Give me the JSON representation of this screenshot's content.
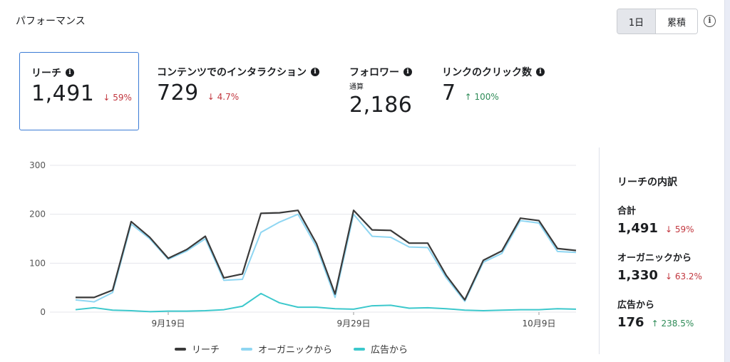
{
  "header": {
    "title": "パフォーマンス",
    "toggle": [
      "1日",
      "累積"
    ],
    "info": "i"
  },
  "metrics": [
    {
      "label": "リーチ",
      "sub": "",
      "value": "1,491",
      "delta": "59%",
      "direction": "down"
    },
    {
      "label": "コンテンツでのインタラクション",
      "sub": "",
      "value": "729",
      "delta": "4.7%",
      "direction": "down"
    },
    {
      "label": "フォロワー",
      "sub": "通算",
      "value": "2,186",
      "delta": "",
      "direction": ""
    },
    {
      "label": "リンクのクリック数",
      "sub": "",
      "value": "7",
      "delta": "100%",
      "direction": "up"
    }
  ],
  "arrows": {
    "down": "↓",
    "up": "↑"
  },
  "breakdown": {
    "title": "リーチの内訳",
    "items": [
      {
        "label": "合計",
        "value": "1,491",
        "delta": "59%",
        "direction": "down"
      },
      {
        "label": "オーガニックから",
        "value": "1,330",
        "delta": "63.2%",
        "direction": "down"
      },
      {
        "label": "広告から",
        "value": "176",
        "delta": "238.5%",
        "direction": "up"
      }
    ]
  },
  "chart_data": {
    "type": "line",
    "x": [
      1,
      2,
      3,
      4,
      5,
      6,
      7,
      8,
      9,
      10,
      11,
      12,
      13,
      14,
      15,
      16,
      17,
      18,
      19,
      20,
      21,
      22,
      23,
      24,
      25,
      26,
      27,
      28
    ],
    "xticks": [
      {
        "x": 6,
        "label": "9月19日"
      },
      {
        "x": 16,
        "label": "9月29日"
      },
      {
        "x": 26,
        "label": "10月9日"
      }
    ],
    "yticks": [
      0,
      100,
      200,
      300
    ],
    "ylim": [
      0,
      300
    ],
    "grid": true,
    "legend_position": "bottom",
    "series": [
      {
        "name": "リーチ",
        "color": "#3a3a3a",
        "values": [
          30,
          30,
          45,
          185,
          153,
          110,
          128,
          155,
          70,
          78,
          202,
          203,
          208,
          140,
          37,
          208,
          168,
          167,
          141,
          141,
          75,
          25,
          106,
          125,
          192,
          187,
          130,
          126
        ]
      },
      {
        "name": "オーガニックから",
        "color": "#8fd6f2",
        "values": [
          25,
          21,
          40,
          180,
          150,
          108,
          125,
          150,
          65,
          67,
          163,
          184,
          200,
          133,
          30,
          200,
          155,
          153,
          133,
          132,
          70,
          22,
          102,
          120,
          187,
          182,
          124,
          122
        ]
      },
      {
        "name": "広告から",
        "color": "#3cc8cc",
        "values": [
          5,
          9,
          4,
          3,
          1,
          2,
          2,
          3,
          5,
          12,
          38,
          19,
          10,
          10,
          7,
          6,
          13,
          14,
          8,
          9,
          7,
          4,
          3,
          4,
          5,
          5,
          7,
          6
        ]
      }
    ]
  }
}
